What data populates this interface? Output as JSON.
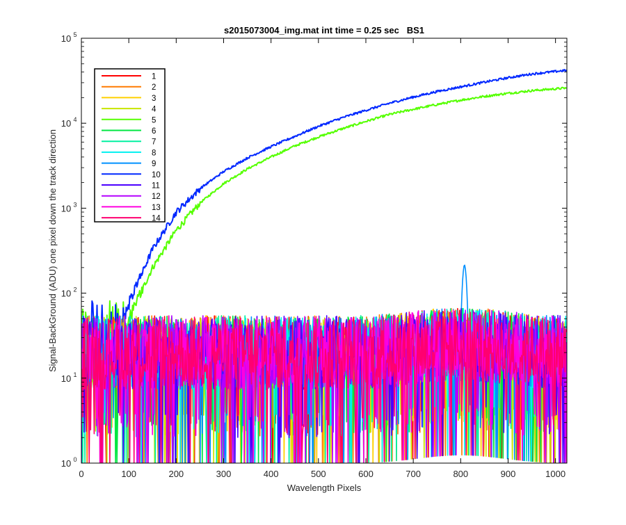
{
  "chart_data": {
    "type": "line",
    "title": "s2015073004_img.mat int time = 0.25 sec   BS1",
    "xlabel": "Wavelength Pixels",
    "ylabel": "Signal-BackGround (ADU) one pixel down the track direction",
    "xlim": [
      0,
      1024
    ],
    "ylim": [
      1,
      100000
    ],
    "yscale": "log",
    "grid": false,
    "legend_position": "top-left",
    "x_ticks": [
      0,
      100,
      200,
      300,
      400,
      500,
      600,
      700,
      800,
      900,
      1000
    ],
    "x_tick_labels": [
      "0",
      "100",
      "200",
      "300",
      "400",
      "500",
      "600",
      "700",
      "800",
      "900",
      "1000"
    ],
    "y_ticks": [
      1,
      10,
      100,
      1000,
      10000,
      100000
    ],
    "y_tick_labels": [
      {
        "base": "10",
        "exp": "0"
      },
      {
        "base": "10",
        "exp": "1"
      },
      {
        "base": "10",
        "exp": "2"
      },
      {
        "base": "10",
        "exp": "3"
      },
      {
        "base": "10",
        "exp": "4"
      },
      {
        "base": "10",
        "exp": "5"
      }
    ],
    "noise_level_approx": {
      "typical": 20,
      "min": 1,
      "max": 60
    },
    "series": [
      {
        "name": "1",
        "color": "#ff0000",
        "kind": "noise"
      },
      {
        "name": "2",
        "color": "#ff7a00",
        "kind": "noise"
      },
      {
        "name": "3",
        "color": "#ffd000",
        "kind": "noise"
      },
      {
        "name": "4",
        "color": "#c8e600",
        "kind": "noise"
      },
      {
        "name": "5",
        "color": "#55ff00",
        "kind": "signal",
        "x": [
          0,
          50,
          100,
          150,
          200,
          250,
          300,
          350,
          400,
          450,
          500,
          550,
          600,
          650,
          700,
          750,
          800,
          850,
          900,
          950,
          1024
        ],
        "y": [
          5,
          8,
          50,
          200,
          550,
          1150,
          1950,
          2900,
          4000,
          5400,
          6900,
          8600,
          10500,
          12700,
          14600,
          16600,
          18700,
          20700,
          22500,
          24200,
          26000
        ]
      },
      {
        "name": "6",
        "color": "#00e640",
        "kind": "noise"
      },
      {
        "name": "7",
        "color": "#00f0a0",
        "kind": "noise"
      },
      {
        "name": "8",
        "color": "#00f0f0",
        "kind": "noise"
      },
      {
        "name": "9",
        "color": "#0090ff",
        "kind": "noise_with_peak",
        "peak_x": 808,
        "peak_y": 215
      },
      {
        "name": "10",
        "color": "#0028ff",
        "kind": "signal",
        "x": [
          0,
          50,
          100,
          150,
          200,
          250,
          300,
          350,
          400,
          450,
          500,
          550,
          600,
          650,
          700,
          750,
          800,
          850,
          900,
          950,
          1024
        ],
        "y": [
          8,
          12,
          75,
          330,
          900,
          1700,
          2700,
          3900,
          5300,
          7000,
          9200,
          11600,
          14200,
          17200,
          20300,
          23600,
          26800,
          30400,
          34300,
          38000,
          42000
        ]
      },
      {
        "name": "11",
        "color": "#4b00ff",
        "kind": "noise"
      },
      {
        "name": "12",
        "color": "#b400ff",
        "kind": "noise"
      },
      {
        "name": "13",
        "color": "#ff00e0",
        "kind": "noise"
      },
      {
        "name": "14",
        "color": "#ff0070",
        "kind": "noise"
      }
    ]
  }
}
